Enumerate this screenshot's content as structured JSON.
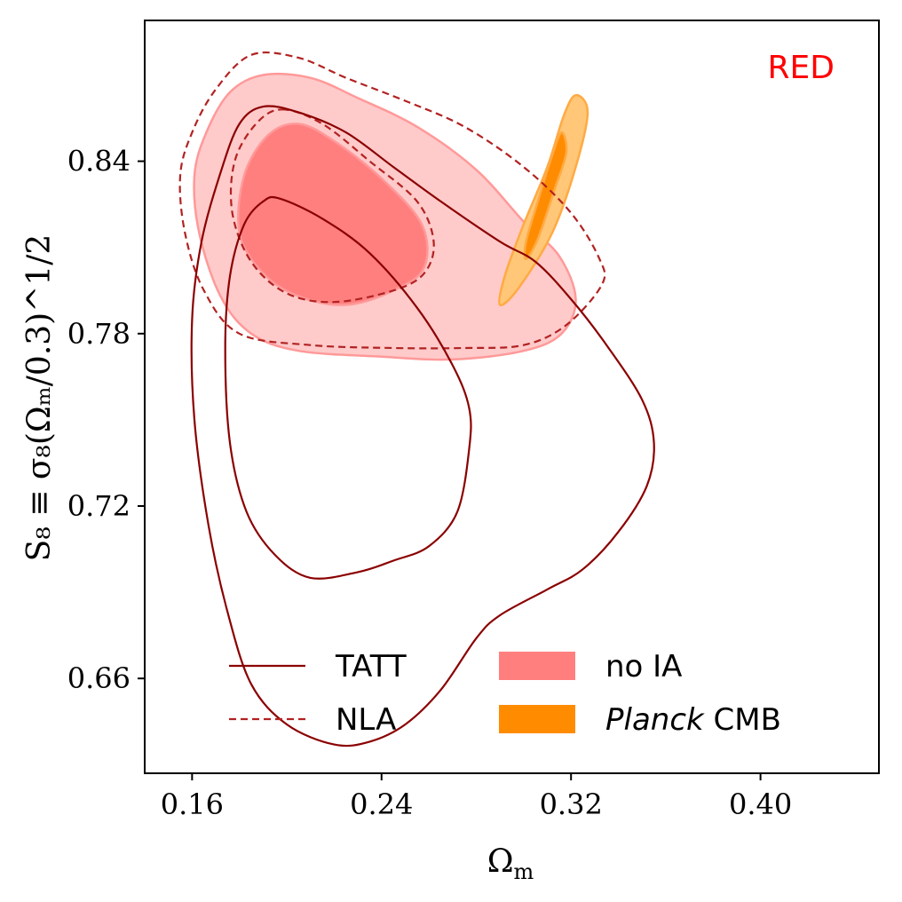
{
  "chart_data": {
    "type": "contour",
    "panel_label": "RED",
    "panel_label_color": "#ff0000",
    "xlabel": "Ω",
    "xlabel_sub": "m",
    "ylabel": "S₈ ≡ σ₈(Ωₘ/0.3)^1/2",
    "xlim": [
      0.14,
      0.45
    ],
    "ylim": [
      0.627,
      0.889
    ],
    "xticks": [
      {
        "value": 0.16,
        "label": "0.16"
      },
      {
        "value": 0.24,
        "label": "0.24"
      },
      {
        "value": 0.32,
        "label": "0.32"
      },
      {
        "value": 0.4,
        "label": "0.40"
      }
    ],
    "yticks": [
      {
        "value": 0.66,
        "label": "0.66"
      },
      {
        "value": 0.72,
        "label": "0.72"
      },
      {
        "value": 0.78,
        "label": "0.78"
      },
      {
        "value": 0.84,
        "label": "0.84"
      }
    ],
    "series": [
      {
        "name": "TATT",
        "style": "line",
        "color": "#8b0000",
        "dash": false,
        "contours": [
          [
            [
              0.19,
              0.859
            ],
            [
              0.205,
              0.857
            ],
            [
              0.225,
              0.85
            ],
            [
              0.245,
              0.838
            ],
            [
              0.265,
              0.826
            ],
            [
              0.29,
              0.812
            ],
            [
              0.305,
              0.805
            ],
            [
              0.32,
              0.792
            ],
            [
              0.335,
              0.776
            ],
            [
              0.35,
              0.757
            ],
            [
              0.355,
              0.742
            ],
            [
              0.352,
              0.727
            ],
            [
              0.34,
              0.711
            ],
            [
              0.325,
              0.698
            ],
            [
              0.31,
              0.691
            ],
            [
              0.29,
              0.682
            ],
            [
              0.28,
              0.674
            ],
            [
              0.265,
              0.656
            ],
            [
              0.25,
              0.644
            ],
            [
              0.235,
              0.638
            ],
            [
              0.22,
              0.637
            ],
            [
              0.2,
              0.644
            ],
            [
              0.185,
              0.658
            ],
            [
              0.175,
              0.683
            ],
            [
              0.167,
              0.713
            ],
            [
              0.161,
              0.75
            ],
            [
              0.16,
              0.785
            ],
            [
              0.164,
              0.812
            ],
            [
              0.172,
              0.836
            ],
            [
              0.18,
              0.853
            ],
            [
              0.19,
              0.859
            ]
          ],
          [
            [
              0.197,
              0.827
            ],
            [
              0.215,
              0.82
            ],
            [
              0.235,
              0.808
            ],
            [
              0.255,
              0.789
            ],
            [
              0.27,
              0.769
            ],
            [
              0.277,
              0.754
            ],
            [
              0.277,
              0.74
            ],
            [
              0.272,
              0.718
            ],
            [
              0.26,
              0.706
            ],
            [
              0.245,
              0.701
            ],
            [
              0.23,
              0.697
            ],
            [
              0.21,
              0.695
            ],
            [
              0.195,
              0.703
            ],
            [
              0.183,
              0.718
            ],
            [
              0.176,
              0.742
            ],
            [
              0.174,
              0.775
            ],
            [
              0.176,
              0.8
            ],
            [
              0.182,
              0.818
            ],
            [
              0.19,
              0.826
            ],
            [
              0.197,
              0.827
            ]
          ]
        ]
      },
      {
        "name": "NLA",
        "style": "line",
        "color": "#b22222",
        "dash": true,
        "contours": [
          [
            [
              0.185,
              0.877
            ],
            [
              0.205,
              0.876
            ],
            [
              0.225,
              0.869
            ],
            [
              0.25,
              0.861
            ],
            [
              0.275,
              0.852
            ],
            [
              0.3,
              0.838
            ],
            [
              0.32,
              0.822
            ],
            [
              0.332,
              0.806
            ],
            [
              0.333,
              0.797
            ],
            [
              0.318,
              0.783
            ],
            [
              0.3,
              0.776
            ],
            [
              0.275,
              0.775
            ],
            [
              0.245,
              0.775
            ],
            [
              0.21,
              0.776
            ],
            [
              0.18,
              0.78
            ],
            [
              0.165,
              0.795
            ],
            [
              0.157,
              0.815
            ],
            [
              0.155,
              0.835
            ],
            [
              0.16,
              0.85
            ],
            [
              0.17,
              0.865
            ],
            [
              0.185,
              0.877
            ]
          ],
          [
            [
              0.198,
              0.858
            ],
            [
              0.215,
              0.853
            ],
            [
              0.235,
              0.84
            ],
            [
              0.255,
              0.826
            ],
            [
              0.262,
              0.812
            ],
            [
              0.258,
              0.801
            ],
            [
              0.245,
              0.795
            ],
            [
              0.22,
              0.791
            ],
            [
              0.2,
              0.794
            ],
            [
              0.185,
              0.805
            ],
            [
              0.177,
              0.822
            ],
            [
              0.178,
              0.84
            ],
            [
              0.187,
              0.853
            ],
            [
              0.198,
              0.858
            ]
          ]
        ]
      },
      {
        "name": "no IA",
        "style": "fill",
        "fill_color": "#ff7f7f",
        "fill_light": "#ffcaca",
        "edge_color": "#ff9999",
        "contours": [
          [
            [
              0.19,
              0.87
            ],
            [
              0.21,
              0.869
            ],
            [
              0.23,
              0.862
            ],
            [
              0.255,
              0.852
            ],
            [
              0.28,
              0.837
            ],
            [
              0.3,
              0.819
            ],
            [
              0.315,
              0.807
            ],
            [
              0.322,
              0.792
            ],
            [
              0.316,
              0.78
            ],
            [
              0.3,
              0.774
            ],
            [
              0.27,
              0.771
            ],
            [
              0.24,
              0.772
            ],
            [
              0.205,
              0.774
            ],
            [
              0.185,
              0.78
            ],
            [
              0.172,
              0.793
            ],
            [
              0.163,
              0.815
            ],
            [
              0.161,
              0.835
            ],
            [
              0.166,
              0.85
            ],
            [
              0.176,
              0.864
            ],
            [
              0.19,
              0.87
            ]
          ],
          [
            [
              0.205,
              0.853
            ],
            [
              0.22,
              0.847
            ],
            [
              0.24,
              0.834
            ],
            [
              0.257,
              0.818
            ],
            [
              0.258,
              0.803
            ],
            [
              0.245,
              0.795
            ],
            [
              0.225,
              0.79
            ],
            [
              0.205,
              0.793
            ],
            [
              0.19,
              0.801
            ],
            [
              0.18,
              0.815
            ],
            [
              0.182,
              0.835
            ],
            [
              0.192,
              0.849
            ],
            [
              0.205,
              0.853
            ]
          ]
        ]
      },
      {
        "name": "Planck CMB",
        "style": "fill",
        "fill_color": "#ff8c00",
        "fill_light": "#ffc777",
        "edge_color": "#ffaa44",
        "contours": [
          [
            [
              0.322,
              0.863
            ],
            [
              0.327,
              0.857
            ],
            [
              0.322,
              0.838
            ],
            [
              0.312,
              0.815
            ],
            [
              0.298,
              0.796
            ],
            [
              0.29,
              0.79
            ],
            [
              0.292,
              0.8
            ],
            [
              0.3,
              0.818
            ],
            [
              0.31,
              0.838
            ],
            [
              0.317,
              0.856
            ],
            [
              0.322,
              0.863
            ]
          ],
          [
            [
              0.316,
              0.85
            ],
            [
              0.318,
              0.843
            ],
            [
              0.313,
              0.83
            ],
            [
              0.306,
              0.813
            ],
            [
              0.301,
              0.806
            ],
            [
              0.301,
              0.812
            ],
            [
              0.306,
              0.826
            ],
            [
              0.312,
              0.842
            ],
            [
              0.316,
              0.85
            ]
          ]
        ]
      }
    ],
    "legend": [
      {
        "label": "TATT",
        "kind": "line",
        "color": "#8b0000",
        "dash": false,
        "italic": ""
      },
      {
        "label": "NLA",
        "kind": "line",
        "color": "#b22222",
        "dash": true,
        "italic": ""
      },
      {
        "label": "no IA",
        "kind": "patch",
        "color": "#ff7f7f",
        "italic": ""
      },
      {
        "label": " CMB",
        "kind": "patch",
        "color": "#ff8c00",
        "italic": "Planck"
      }
    ],
    "legend_position": "lower-center",
    "grid": false
  }
}
